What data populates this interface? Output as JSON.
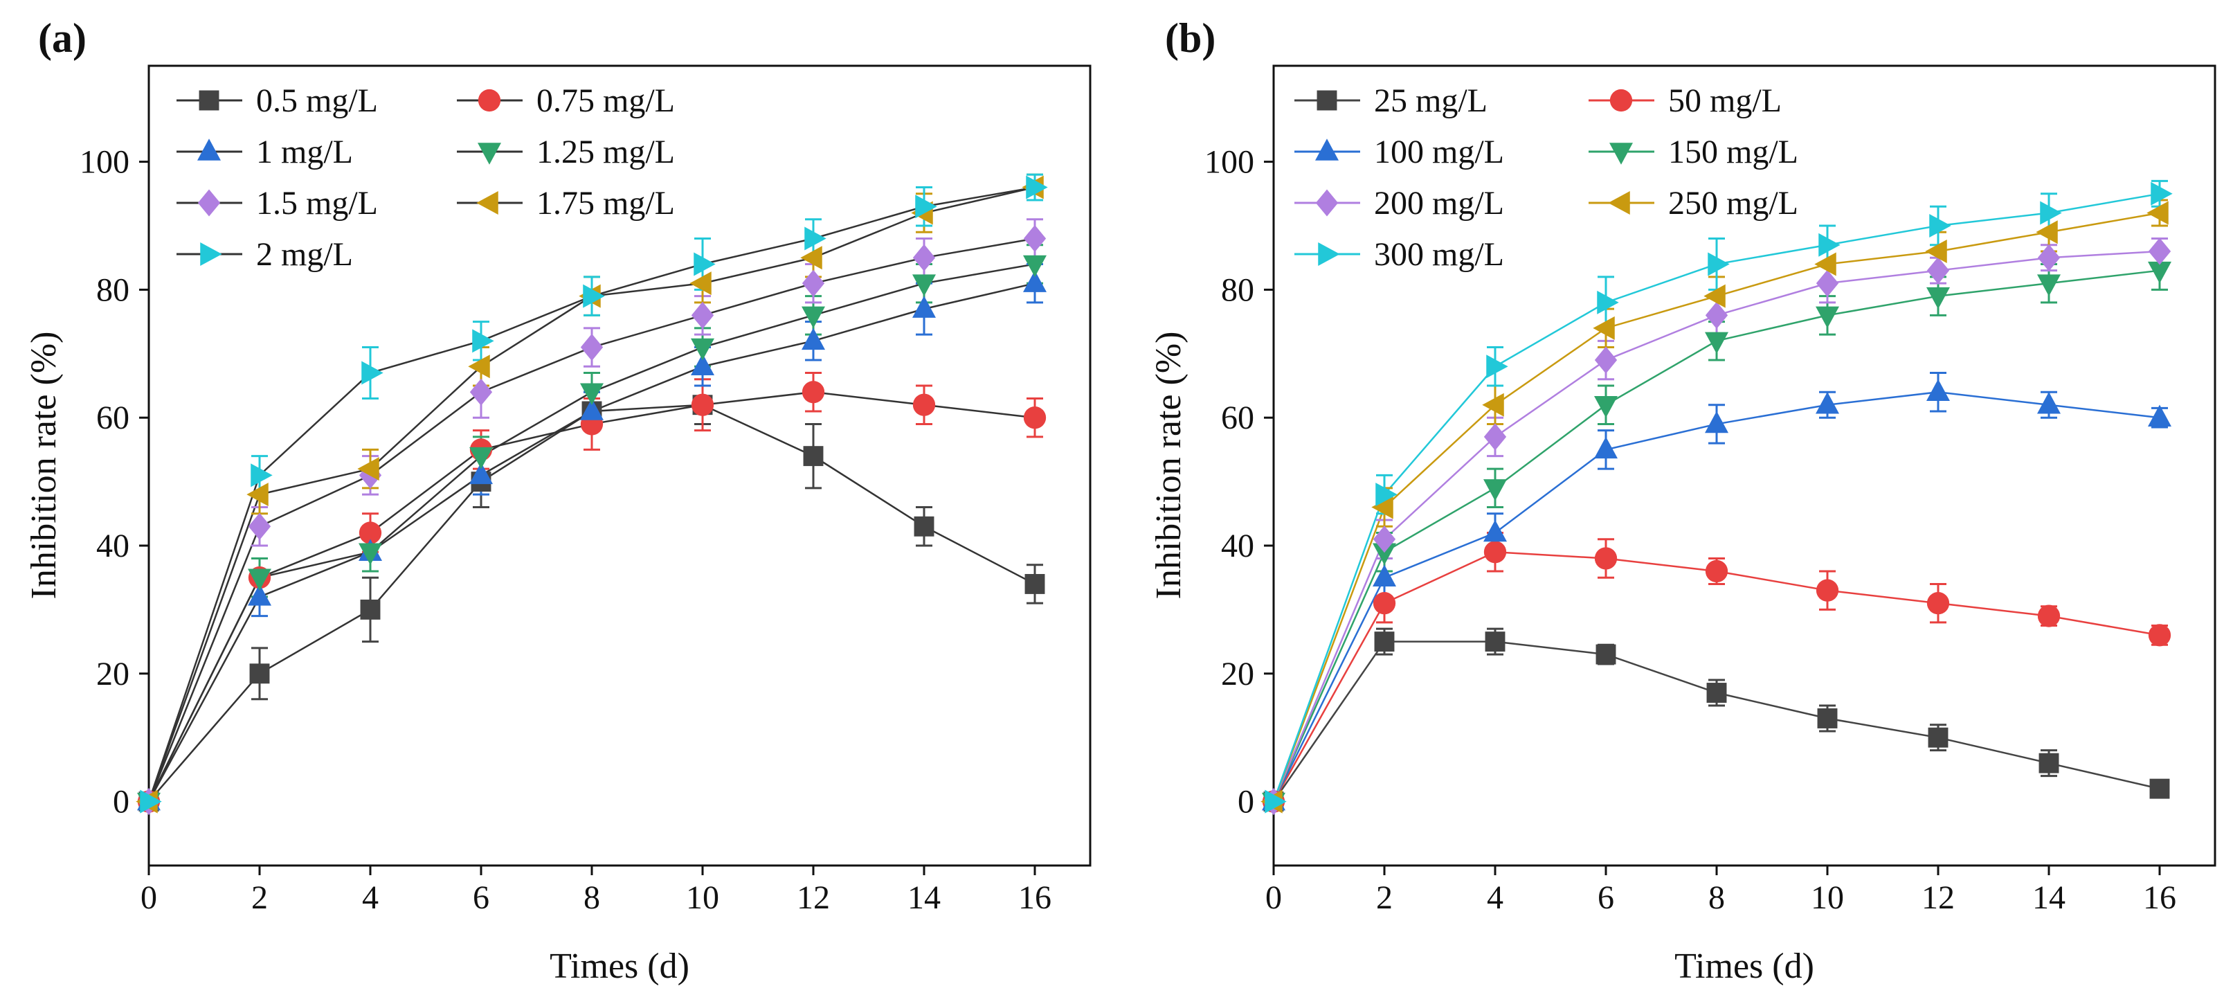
{
  "chart_data": [
    {
      "panel_label": "(a)",
      "type": "line",
      "xlabel": "Times (d)",
      "ylabel": "Inhibition rate (%)",
      "xlim": [
        0,
        17
      ],
      "ylim": [
        -10,
        115
      ],
      "xticks": [
        0,
        2,
        4,
        6,
        8,
        10,
        12,
        14,
        16
      ],
      "xtick_labels": [
        "0",
        "2",
        "4",
        "6",
        "8",
        "10",
        "12",
        "14",
        "16"
      ],
      "yticks": [
        0,
        20,
        40,
        60,
        80,
        100
      ],
      "ytick_labels": [
        "0",
        "20",
        "40",
        "60",
        "80",
        "100"
      ],
      "legend_position": "top-left",
      "legend_columns": 2,
      "x": [
        0,
        2,
        4,
        6,
        8,
        10,
        12,
        14,
        16
      ],
      "series": [
        {
          "name": "0.5 mg/L",
          "color": "#444444",
          "marker": "square",
          "values": [
            0,
            20,
            30,
            50,
            61,
            62,
            54,
            43,
            34
          ],
          "errors": [
            0,
            4,
            5,
            4,
            3,
            3,
            5,
            3,
            3
          ]
        },
        {
          "name": "0.75 mg/L",
          "color": "#e8403f",
          "marker": "circle",
          "values": [
            0,
            35,
            42,
            55,
            59,
            62,
            64,
            62,
            60
          ],
          "errors": [
            0,
            3,
            3,
            3,
            4,
            4,
            3,
            3,
            3
          ]
        },
        {
          "name": "1 mg/L",
          "color": "#2a6fd4",
          "marker": "triangle-up",
          "values": [
            0,
            32,
            39,
            51,
            61,
            68,
            72,
            77,
            81
          ],
          "errors": [
            0,
            3,
            3,
            3,
            3,
            3,
            3,
            4,
            3
          ]
        },
        {
          "name": "1.25 mg/L",
          "color": "#2fa36b",
          "marker": "triangle-down",
          "values": [
            0,
            35,
            39,
            54,
            64,
            71,
            76,
            81,
            84
          ],
          "errors": [
            0,
            3,
            3,
            3,
            3,
            3,
            3,
            3,
            3
          ]
        },
        {
          "name": "1.5 mg/L",
          "color": "#b07fe0",
          "marker": "diamond",
          "values": [
            0,
            43,
            51,
            64,
            71,
            76,
            81,
            85,
            88
          ],
          "errors": [
            0,
            3,
            3,
            4,
            3,
            3,
            3,
            3,
            3
          ]
        },
        {
          "name": "1.75 mg/L",
          "color": "#c99a10",
          "marker": "triangle-left",
          "values": [
            0,
            48,
            52,
            68,
            79,
            81,
            85,
            92,
            96
          ],
          "errors": [
            0,
            3,
            3,
            3,
            3,
            3,
            3,
            3,
            2
          ]
        },
        {
          "name": "2 mg/L",
          "color": "#22c8d8",
          "marker": "triangle-right",
          "values": [
            0,
            51,
            67,
            72,
            79,
            84,
            88,
            93,
            96
          ],
          "errors": [
            0,
            3,
            4,
            3,
            3,
            4,
            3,
            3,
            2
          ]
        }
      ]
    },
    {
      "panel_label": "(b)",
      "type": "line",
      "xlabel": "Times (d)",
      "ylabel": "Inhibition rate (%)",
      "xlim": [
        0,
        17
      ],
      "ylim": [
        -10,
        115
      ],
      "xticks": [
        0,
        2,
        4,
        6,
        8,
        10,
        12,
        14,
        16
      ],
      "xtick_labels": [
        "0",
        "2",
        "4",
        "6",
        "8",
        "10",
        "12",
        "14",
        "16"
      ],
      "yticks": [
        0,
        20,
        40,
        60,
        80,
        100
      ],
      "ytick_labels": [
        "0",
        "20",
        "40",
        "60",
        "80",
        "100"
      ],
      "legend_position": "top-left",
      "legend_columns": 2,
      "x": [
        0,
        2,
        4,
        6,
        8,
        10,
        12,
        14,
        16
      ],
      "series": [
        {
          "name": "25 mg/L",
          "color": "#444444",
          "marker": "square",
          "values": [
            0,
            25,
            25,
            23,
            17,
            13,
            10,
            6,
            2
          ],
          "errors": [
            0,
            2,
            2,
            1.5,
            2,
            2,
            2,
            2,
            1
          ]
        },
        {
          "name": "50 mg/L",
          "color": "#e8403f",
          "marker": "circle",
          "values": [
            0,
            31,
            39,
            38,
            36,
            33,
            31,
            29,
            26
          ],
          "errors": [
            0,
            3,
            3,
            3,
            2,
            3,
            3,
            1.5,
            1.5
          ]
        },
        {
          "name": "100 mg/L",
          "color": "#2a6fd4",
          "marker": "triangle-up",
          "values": [
            0,
            35,
            42,
            55,
            59,
            62,
            64,
            62,
            60
          ],
          "errors": [
            0,
            3,
            3,
            3,
            3,
            2,
            3,
            2,
            1.5
          ]
        },
        {
          "name": "150 mg/L",
          "color": "#2fa36b",
          "marker": "triangle-down",
          "values": [
            0,
            39,
            49,
            62,
            72,
            76,
            79,
            81,
            83
          ],
          "errors": [
            0,
            3,
            3,
            3,
            3,
            3,
            3,
            3,
            3
          ]
        },
        {
          "name": "200 mg/L",
          "color": "#b07fe0",
          "marker": "diamond",
          "values": [
            0,
            41,
            57,
            69,
            76,
            81,
            83,
            85,
            86
          ],
          "errors": [
            0,
            3,
            3,
            3,
            3,
            3,
            2,
            2,
            2
          ]
        },
        {
          "name": "250 mg/L",
          "color": "#c99a10",
          "marker": "triangle-left",
          "values": [
            0,
            46,
            62,
            74,
            79,
            84,
            86,
            89,
            92
          ],
          "errors": [
            0,
            3,
            3,
            3,
            3,
            3,
            3,
            3,
            2
          ]
        },
        {
          "name": "300 mg/L",
          "color": "#22c8d8",
          "marker": "triangle-right",
          "values": [
            0,
            48,
            68,
            78,
            84,
            87,
            90,
            92,
            95
          ],
          "errors": [
            0,
            3,
            3,
            4,
            4,
            3,
            3,
            3,
            2
          ]
        }
      ]
    }
  ]
}
